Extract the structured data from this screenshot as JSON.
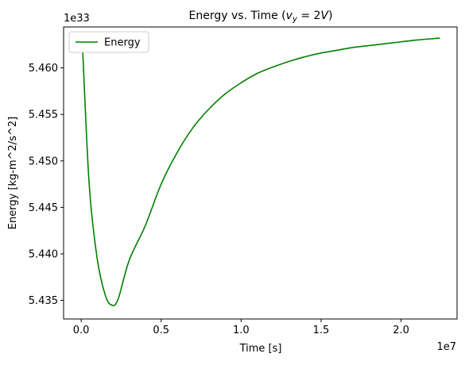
{
  "chart_data": {
    "type": "line",
    "title_main": "Energy vs. Time (",
    "title_math": "v",
    "title_sub": "y",
    "title_eq": " = 2",
    "title_var": "V",
    "title_close": ")",
    "xlabel": "Time [s]",
    "ylabel": "Energy [kg-m^2/s^2]",
    "x_offset_label": "1e7",
    "y_offset_label": "1e33",
    "x_scale": 10000000,
    "y_scale": 1e+33,
    "xlim": [
      -1100000,
      23500000
    ],
    "ylim": [
      5.433,
      5.4644
    ],
    "x_ticks": [
      {
        "value": 0,
        "label": "0.0"
      },
      {
        "value": 5000000,
        "label": "0.5"
      },
      {
        "value": 10000000,
        "label": "1.0"
      },
      {
        "value": 15000000,
        "label": "1.5"
      },
      {
        "value": 20000000,
        "label": "2.0"
      }
    ],
    "y_ticks": [
      {
        "value": 5.435,
        "label": "5.435"
      },
      {
        "value": 5.44,
        "label": "5.440"
      },
      {
        "value": 5.445,
        "label": "5.445"
      },
      {
        "value": 5.45,
        "label": "5.450"
      },
      {
        "value": 5.455,
        "label": "5.455"
      },
      {
        "value": 5.46,
        "label": "5.460"
      }
    ],
    "grid": false,
    "legend_position": "upper-left",
    "series": [
      {
        "name": "Energy",
        "color": "#008000",
        "x": [
          100000,
          500000,
          1000000,
          1500000,
          1900000,
          2300000,
          3000000,
          4000000,
          5000000,
          6000000,
          7000000,
          8000000,
          9000000,
          10000000,
          11000000,
          12000000,
          13000000,
          14000000,
          15000000,
          16000000,
          17000000,
          18000000,
          19000000,
          20000000,
          21000000,
          22400000
        ],
        "y": [
          5.4617,
          5.4475,
          5.4395,
          5.4356,
          5.4345,
          5.4351,
          5.4393,
          5.443,
          5.4475,
          5.4509,
          5.4536,
          5.4556,
          5.4572,
          5.4584,
          5.4594,
          5.4601,
          5.4607,
          5.4612,
          5.4616,
          5.4619,
          5.4622,
          5.4624,
          5.4626,
          5.4628,
          5.463,
          5.4632
        ]
      }
    ]
  }
}
